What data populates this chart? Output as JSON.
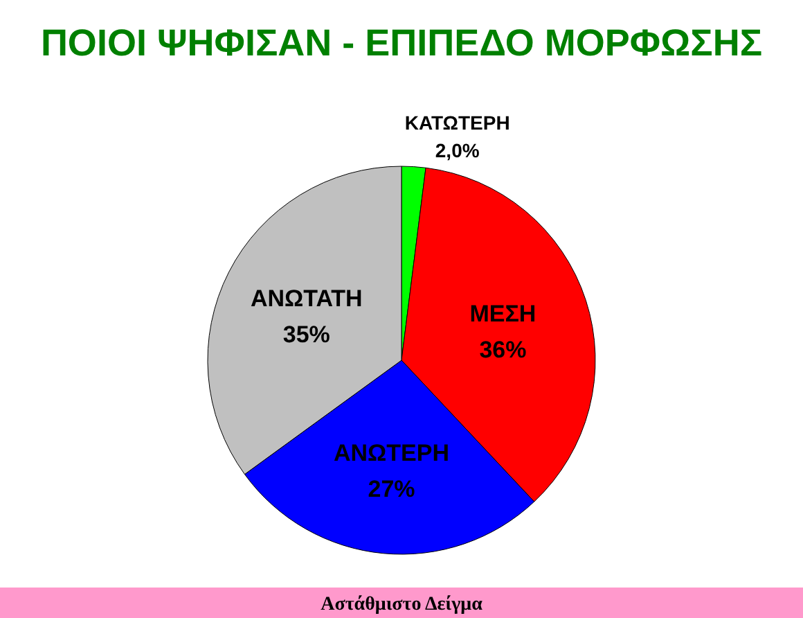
{
  "chart_data": {
    "type": "pie",
    "title": "ΠΟΙΟΙ ΨΗΦΙΣΑΝ - ΕΠΙΠΕΔΟ ΜΟΡΦΩΣΗΣ",
    "categories": [
      "ΚΑΤΩΤΕΡΗ",
      "ΜΕΣΗ",
      "ΑΝΩΤΕΡΗ",
      "ΑΝΩΤΑΤΗ"
    ],
    "values": [
      2.0,
      36,
      27,
      35
    ],
    "value_labels": [
      "2,0%",
      "36%",
      "27%",
      "35%"
    ],
    "colors": [
      "#00ff00",
      "#ff0000",
      "#0000ff",
      "#c0c0c0"
    ],
    "annotations": [
      "Αστάθμιστο Δείγμα"
    ]
  }
}
